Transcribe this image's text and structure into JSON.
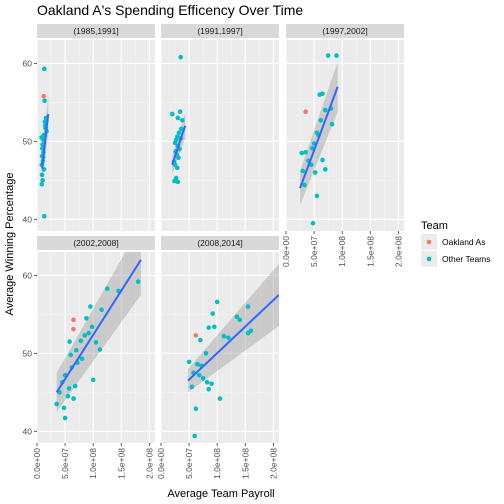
{
  "chart_data": {
    "type": "scatter",
    "title": "Oakland A's Spending Efficency Over Time",
    "xlabel": "Average Team Payroll",
    "ylabel": "Average Winning Percentage",
    "xlim": [
      0,
      210000000
    ],
    "ylim": [
      38.5,
      63
    ],
    "x_ticks": [
      0,
      50000000,
      100000000,
      150000000,
      200000000
    ],
    "x_tick_labels": [
      "0.0e+00",
      "5.0e+07",
      "1.0e+08",
      "1.5e+08",
      "2.0e+08"
    ],
    "y_ticks": [
      40,
      50,
      60
    ],
    "y_tick_labels": [
      "40",
      "50",
      "60"
    ],
    "grid": true,
    "legend": {
      "title": "Team",
      "placement": "right",
      "entries": [
        {
          "name": "Oakland As",
          "color": "#F8766D"
        },
        {
          "name": "Other Teams",
          "color": "#00BFC4"
        }
      ]
    },
    "colors": {
      "oakland": "#F8766D",
      "other": "#00BFC4",
      "fit_line": "#3366FF",
      "ribbon": "#999999",
      "panel_bg": "#EBEBEB",
      "strip_bg": "#D9D9D9"
    },
    "facets": [
      {
        "label": "(1985,1991]",
        "fit": {
          "x": [
            9000000,
            20000000
          ],
          "y": [
            46.5,
            53.5
          ],
          "se_lo": [
            44.5,
            51.2
          ],
          "se_hi": [
            48.5,
            55.8
          ]
        },
        "points": [
          {
            "x": 12000000,
            "y": 55.8,
            "team": "Oakland As"
          },
          {
            "x": 8000000,
            "y": 50.5,
            "team": "Other Teams"
          },
          {
            "x": 13000000,
            "y": 59.3,
            "team": "Other Teams"
          },
          {
            "x": 13500000,
            "y": 55.2,
            "team": "Other Teams"
          },
          {
            "x": 16000000,
            "y": 53.0,
            "team": "Other Teams"
          },
          {
            "x": 14000000,
            "y": 52.5,
            "team": "Other Teams"
          },
          {
            "x": 15000000,
            "y": 51.7,
            "team": "Other Teams"
          },
          {
            "x": 17000000,
            "y": 51.3,
            "team": "Other Teams"
          },
          {
            "x": 12000000,
            "y": 50.8,
            "team": "Other Teams"
          },
          {
            "x": 11000000,
            "y": 50.2,
            "team": "Other Teams"
          },
          {
            "x": 10000000,
            "y": 49.6,
            "team": "Other Teams"
          },
          {
            "x": 9500000,
            "y": 49.1,
            "team": "Other Teams"
          },
          {
            "x": 11500000,
            "y": 48.6,
            "team": "Other Teams"
          },
          {
            "x": 9000000,
            "y": 48.1,
            "team": "Other Teams"
          },
          {
            "x": 10500000,
            "y": 47.5,
            "team": "Other Teams"
          },
          {
            "x": 8500000,
            "y": 47.0,
            "team": "Other Teams"
          },
          {
            "x": 12500000,
            "y": 46.4,
            "team": "Other Teams"
          },
          {
            "x": 9000000,
            "y": 45.7,
            "team": "Other Teams"
          },
          {
            "x": 10000000,
            "y": 45.0,
            "team": "Other Teams"
          },
          {
            "x": 8500000,
            "y": 44.5,
            "team": "Other Teams"
          },
          {
            "x": 13000000,
            "y": 40.4,
            "team": "Other Teams"
          },
          {
            "x": 14500000,
            "y": 52.0,
            "team": "Other Teams"
          },
          {
            "x": 11000000,
            "y": 48.0,
            "team": "Other Teams"
          }
        ]
      },
      {
        "label": "(1991,1997]",
        "fit": {
          "x": [
            20000000,
            43000000
          ],
          "y": [
            47.0,
            52.0
          ],
          "se_lo": [
            45.8,
            50.4
          ],
          "se_hi": [
            48.2,
            53.6
          ]
        },
        "points": [
          {
            "x": 35000000,
            "y": 60.8,
            "team": "Other Teams"
          },
          {
            "x": 20000000,
            "y": 53.5,
            "team": "Other Teams"
          },
          {
            "x": 34000000,
            "y": 53.8,
            "team": "Other Teams"
          },
          {
            "x": 30000000,
            "y": 53.0,
            "team": "Other Teams"
          },
          {
            "x": 38000000,
            "y": 52.7,
            "team": "Other Teams"
          },
          {
            "x": 36000000,
            "y": 51.6,
            "team": "Other Teams"
          },
          {
            "x": 32000000,
            "y": 51.1,
            "team": "Other Teams"
          },
          {
            "x": 29000000,
            "y": 50.6,
            "team": "Other Teams"
          },
          {
            "x": 27000000,
            "y": 50.2,
            "team": "Other Teams"
          },
          {
            "x": 25000000,
            "y": 49.8,
            "team": "Other Teams"
          },
          {
            "x": 30000000,
            "y": 49.4,
            "team": "Other Teams"
          },
          {
            "x": 33000000,
            "y": 49.0,
            "team": "Other Teams"
          },
          {
            "x": 26000000,
            "y": 48.7,
            "team": "Other Teams"
          },
          {
            "x": 28000000,
            "y": 48.3,
            "team": "Other Teams"
          },
          {
            "x": 31000000,
            "y": 47.9,
            "team": "Other Teams"
          },
          {
            "x": 23000000,
            "y": 47.4,
            "team": "Other Teams"
          },
          {
            "x": 25000000,
            "y": 47.0,
            "team": "Other Teams"
          },
          {
            "x": 29000000,
            "y": 46.6,
            "team": "Other Teams"
          },
          {
            "x": 27000000,
            "y": 45.3,
            "team": "Other Teams"
          },
          {
            "x": 30000000,
            "y": 44.8,
            "team": "Other Teams"
          },
          {
            "x": 24000000,
            "y": 44.9,
            "team": "Other Teams"
          },
          {
            "x": 35000000,
            "y": 50.4,
            "team": "Other Teams"
          }
        ]
      },
      {
        "label": "(1997,2002]",
        "fit": {
          "x": [
            25000000,
            92000000
          ],
          "y": [
            44.0,
            57.0
          ],
          "se_lo": [
            41.8,
            53.8
          ],
          "se_hi": [
            46.2,
            60.2
          ]
        },
        "points": [
          {
            "x": 35000000,
            "y": 53.8,
            "team": "Oakland As"
          },
          {
            "x": 75000000,
            "y": 61.0,
            "team": "Other Teams"
          },
          {
            "x": 90000000,
            "y": 61.0,
            "team": "Other Teams"
          },
          {
            "x": 60000000,
            "y": 56.0,
            "team": "Other Teams"
          },
          {
            "x": 65000000,
            "y": 56.1,
            "team": "Other Teams"
          },
          {
            "x": 70000000,
            "y": 54.0,
            "team": "Other Teams"
          },
          {
            "x": 80000000,
            "y": 54.2,
            "team": "Other Teams"
          },
          {
            "x": 82000000,
            "y": 52.2,
            "team": "Other Teams"
          },
          {
            "x": 55000000,
            "y": 51.1,
            "team": "Other Teams"
          },
          {
            "x": 62000000,
            "y": 52.7,
            "team": "Other Teams"
          },
          {
            "x": 50000000,
            "y": 49.7,
            "team": "Other Teams"
          },
          {
            "x": 47000000,
            "y": 49.1,
            "team": "Other Teams"
          },
          {
            "x": 28000000,
            "y": 48.5,
            "team": "Other Teams"
          },
          {
            "x": 35000000,
            "y": 48.6,
            "team": "Other Teams"
          },
          {
            "x": 40000000,
            "y": 47.5,
            "team": "Other Teams"
          },
          {
            "x": 45000000,
            "y": 47.0,
            "team": "Other Teams"
          },
          {
            "x": 30000000,
            "y": 46.2,
            "team": "Other Teams"
          },
          {
            "x": 52000000,
            "y": 46.0,
            "team": "Other Teams"
          },
          {
            "x": 65000000,
            "y": 47.6,
            "team": "Other Teams"
          },
          {
            "x": 70000000,
            "y": 46.4,
            "team": "Other Teams"
          },
          {
            "x": 33000000,
            "y": 44.4,
            "team": "Other Teams"
          },
          {
            "x": 55000000,
            "y": 43.0,
            "team": "Other Teams"
          },
          {
            "x": 48000000,
            "y": 39.5,
            "team": "Other Teams"
          },
          {
            "x": 58000000,
            "y": 50.8,
            "team": "Other Teams"
          }
        ]
      },
      {
        "label": "(2002,2008]",
        "fit": {
          "x": [
            35000000,
            185000000
          ],
          "y": [
            45.0,
            62.0
          ],
          "se_lo": [
            42.5,
            57.5
          ],
          "se_hi": [
            47.5,
            66.5
          ]
        },
        "points": [
          {
            "x": 65000000,
            "y": 54.3,
            "team": "Oakland As"
          },
          {
            "x": 65000000,
            "y": 53.1,
            "team": "Oakland As"
          },
          {
            "x": 180000000,
            "y": 59.2,
            "team": "Other Teams"
          },
          {
            "x": 125000000,
            "y": 58.3,
            "team": "Other Teams"
          },
          {
            "x": 145000000,
            "y": 58.0,
            "team": "Other Teams"
          },
          {
            "x": 95000000,
            "y": 56.0,
            "team": "Other Teams"
          },
          {
            "x": 115000000,
            "y": 55.6,
            "team": "Other Teams"
          },
          {
            "x": 88000000,
            "y": 54.5,
            "team": "Other Teams"
          },
          {
            "x": 98000000,
            "y": 53.4,
            "team": "Other Teams"
          },
          {
            "x": 92000000,
            "y": 52.6,
            "team": "Other Teams"
          },
          {
            "x": 85000000,
            "y": 52.3,
            "team": "Other Teams"
          },
          {
            "x": 105000000,
            "y": 51.4,
            "team": "Other Teams"
          },
          {
            "x": 112000000,
            "y": 50.5,
            "team": "Other Teams"
          },
          {
            "x": 78000000,
            "y": 51.6,
            "team": "Other Teams"
          },
          {
            "x": 70000000,
            "y": 50.4,
            "team": "Other Teams"
          },
          {
            "x": 60000000,
            "y": 49.8,
            "team": "Other Teams"
          },
          {
            "x": 72000000,
            "y": 48.8,
            "team": "Other Teams"
          },
          {
            "x": 62000000,
            "y": 48.2,
            "team": "Other Teams"
          },
          {
            "x": 50000000,
            "y": 47.2,
            "team": "Other Teams"
          },
          {
            "x": 45000000,
            "y": 46.3,
            "team": "Other Teams"
          },
          {
            "x": 57000000,
            "y": 45.5,
            "team": "Other Teams"
          },
          {
            "x": 68000000,
            "y": 45.8,
            "team": "Other Teams"
          },
          {
            "x": 40000000,
            "y": 45.0,
            "team": "Other Teams"
          },
          {
            "x": 55000000,
            "y": 44.5,
            "team": "Other Teams"
          },
          {
            "x": 65000000,
            "y": 44.2,
            "team": "Other Teams"
          },
          {
            "x": 35000000,
            "y": 43.5,
            "team": "Other Teams"
          },
          {
            "x": 48000000,
            "y": 43.0,
            "team": "Other Teams"
          },
          {
            "x": 50000000,
            "y": 41.7,
            "team": "Other Teams"
          },
          {
            "x": 100000000,
            "y": 46.6,
            "team": "Other Teams"
          },
          {
            "x": 58000000,
            "y": 51.5,
            "team": "Other Teams"
          },
          {
            "x": 80000000,
            "y": 49.3,
            "team": "Other Teams"
          }
        ]
      },
      {
        "label": "(2008,2014]",
        "fit": {
          "x": [
            48000000,
            210000000
          ],
          "y": [
            46.5,
            57.5
          ],
          "se_lo": [
            45.0,
            53.5
          ],
          "se_hi": [
            48.0,
            61.5
          ]
        },
        "points": [
          {
            "x": 62000000,
            "y": 52.3,
            "team": "Oakland As"
          },
          {
            "x": 100000000,
            "y": 56.6,
            "team": "Other Teams"
          },
          {
            "x": 155000000,
            "y": 56.0,
            "team": "Other Teams"
          },
          {
            "x": 92000000,
            "y": 55.1,
            "team": "Other Teams"
          },
          {
            "x": 135000000,
            "y": 54.7,
            "team": "Other Teams"
          },
          {
            "x": 140000000,
            "y": 54.3,
            "team": "Other Teams"
          },
          {
            "x": 85000000,
            "y": 53.3,
            "team": "Other Teams"
          },
          {
            "x": 95000000,
            "y": 53.4,
            "team": "Other Teams"
          },
          {
            "x": 112000000,
            "y": 52.2,
            "team": "Other Teams"
          },
          {
            "x": 160000000,
            "y": 52.9,
            "team": "Other Teams"
          },
          {
            "x": 155000000,
            "y": 52.6,
            "team": "Other Teams"
          },
          {
            "x": 70000000,
            "y": 51.7,
            "team": "Other Teams"
          },
          {
            "x": 80000000,
            "y": 50.0,
            "team": "Other Teams"
          },
          {
            "x": 65000000,
            "y": 48.6,
            "team": "Other Teams"
          },
          {
            "x": 72000000,
            "y": 48.4,
            "team": "Other Teams"
          },
          {
            "x": 58000000,
            "y": 47.5,
            "team": "Other Teams"
          },
          {
            "x": 68000000,
            "y": 47.2,
            "team": "Other Teams"
          },
          {
            "x": 75000000,
            "y": 46.8,
            "team": "Other Teams"
          },
          {
            "x": 82000000,
            "y": 46.3,
            "team": "Other Teams"
          },
          {
            "x": 90000000,
            "y": 46.1,
            "team": "Other Teams"
          },
          {
            "x": 50000000,
            "y": 48.9,
            "team": "Other Teams"
          },
          {
            "x": 55000000,
            "y": 45.7,
            "team": "Other Teams"
          },
          {
            "x": 85000000,
            "y": 45.4,
            "team": "Other Teams"
          },
          {
            "x": 105000000,
            "y": 44.2,
            "team": "Other Teams"
          },
          {
            "x": 62000000,
            "y": 42.9,
            "team": "Other Teams"
          },
          {
            "x": 60000000,
            "y": 39.4,
            "team": "Other Teams"
          },
          {
            "x": 120000000,
            "y": 52.0,
            "team": "Other Teams"
          }
        ]
      }
    ]
  }
}
